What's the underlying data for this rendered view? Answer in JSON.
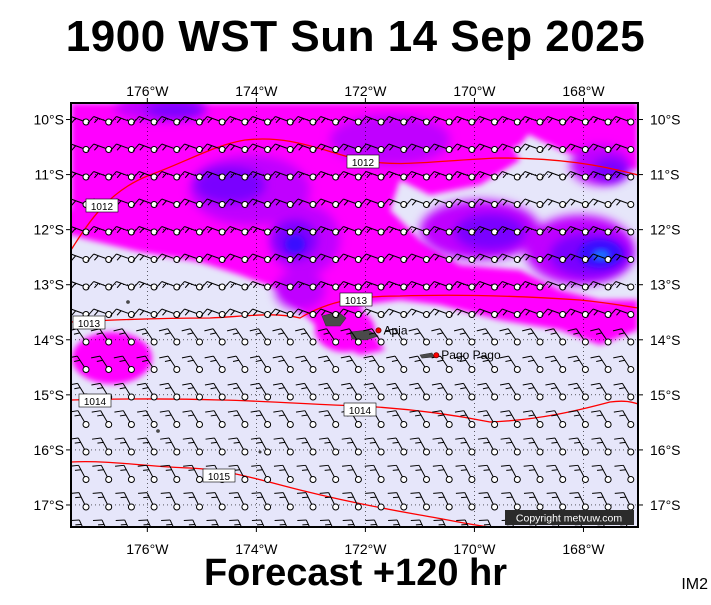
{
  "title": "1900 WST Sun 14 Sep 2025",
  "footer": "Forecast +120 hr",
  "corner_code": "IM2",
  "copyright": "Copyright metvuw.com",
  "longitude_labels": [
    "176°W",
    "174°W",
    "172°W",
    "170°W",
    "168°W"
  ],
  "latitude_labels": [
    "10°S",
    "11°S",
    "12°S",
    "13°S",
    "14°S",
    "15°S",
    "16°S",
    "17°S"
  ],
  "places": [
    {
      "name": "Apia",
      "lon": -171.76,
      "lat": -13.83
    },
    {
      "name": "Pago Pago",
      "lon": -170.7,
      "lat": -14.28
    }
  ],
  "isobars": [
    {
      "label": "1012",
      "value": 1012
    },
    {
      "label": "1013",
      "value": 1013
    },
    {
      "label": "1014",
      "value": 1014
    },
    {
      "label": "1015",
      "value": 1015
    }
  ],
  "colors": {
    "background": "#e6e6fa",
    "rain_light": "#ff00ff",
    "rain_medium": "#c000ff",
    "rain_heavy": "#7a00ff",
    "rain_very_heavy": "#3a10ff",
    "rain_extreme": "#1a6cff",
    "isobar": "#ff0000",
    "land": "#4a4a4a",
    "frame": "#000000"
  },
  "extent": {
    "lon_min": -177.4,
    "lon_max": -167.0,
    "lat_max": -9.7,
    "lat_min": -17.4
  }
}
